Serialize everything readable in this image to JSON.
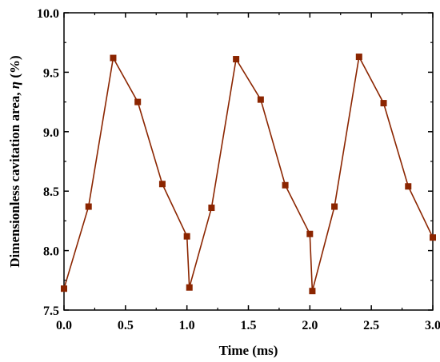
{
  "chart_data": {
    "type": "line",
    "title": "",
    "xlabel": "Time (ms)",
    "ylabel_prefix": "Dimensionless cavitation area, ",
    "ylabel_symbol": "η",
    "ylabel_suffix": " (%)",
    "xlim": [
      0.0,
      3.0
    ],
    "ylim": [
      7.5,
      10.0
    ],
    "x_ticks": [
      "0.0",
      "0.5",
      "1.0",
      "1.5",
      "2.0",
      "2.5",
      "3.0"
    ],
    "y_ticks": [
      "7.5",
      "8.0",
      "8.5",
      "9.0",
      "9.5",
      "10.0"
    ],
    "grid": false,
    "series": [
      {
        "color": "#8b2500",
        "marker": "square",
        "x": [
          0.0,
          0.2,
          0.4,
          0.6,
          0.8,
          1.0,
          1.02,
          1.2,
          1.4,
          1.6,
          1.8,
          2.0,
          2.02,
          2.2,
          2.4,
          2.6,
          2.8,
          3.0
        ],
        "y": [
          7.68,
          8.37,
          9.62,
          9.25,
          8.56,
          8.12,
          7.69,
          8.36,
          9.61,
          9.27,
          8.55,
          8.14,
          7.66,
          8.37,
          9.63,
          9.24,
          8.54,
          8.11
        ]
      }
    ]
  }
}
